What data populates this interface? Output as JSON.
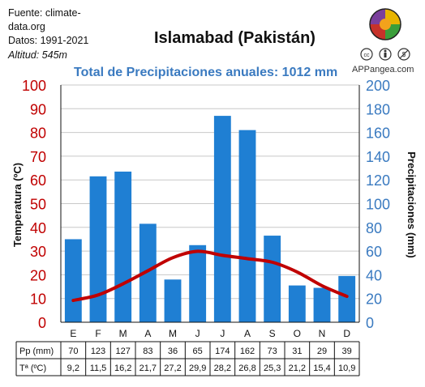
{
  "source": {
    "line1": "Fuente: climate-",
    "line2": "data.org",
    "dates": "Datos: 1991-2021",
    "altitude": "Altitud: 545m"
  },
  "title": "Islamabad (Pakistán)",
  "subtitle": "Total de Precipitaciones anuales: 1012 mm",
  "brand": "APPangea.com",
  "license_icons": [
    "cc-icon",
    "by-icon",
    "nc-icon"
  ],
  "colors": {
    "bar": "#1f7fd3",
    "line": "#c00000",
    "left_axis": "#c00000",
    "right_axis": "#3a7ac0",
    "subtitle": "#3a7ac0"
  },
  "table": {
    "pp_label": "Pp (mm)",
    "t_label": "Tª (ºC)",
    "pp": [
      "70",
      "123",
      "127",
      "83",
      "36",
      "65",
      "174",
      "162",
      "73",
      "31",
      "29",
      "39"
    ],
    "t": [
      "9,2",
      "11,5",
      "16,2",
      "21,7",
      "27,2",
      "29,9",
      "28,2",
      "26,8",
      "25,3",
      "21,2",
      "15,4",
      "10,9"
    ]
  },
  "chart_data": {
    "type": "bar",
    "categories": [
      "E",
      "F",
      "M",
      "A",
      "M",
      "J",
      "J",
      "A",
      "S",
      "O",
      "N",
      "D"
    ],
    "series": [
      {
        "values": [
          70,
          123,
          127,
          83,
          36,
          65,
          174,
          162,
          73,
          31,
          29,
          39
        ],
        "axis": "right",
        "kind": "bar"
      },
      {
        "values": [
          9.2,
          11.5,
          16.2,
          21.7,
          27.2,
          29.9,
          28.2,
          26.8,
          25.3,
          21.2,
          15.4,
          10.9
        ],
        "axis": "left",
        "kind": "line"
      }
    ],
    "ylabel_left": "Temperatura (ºC)",
    "ylabel_right": "Precipitaciones (mm)",
    "ylim_left": [
      0,
      100
    ],
    "ylim_right": [
      0,
      200
    ],
    "yticks_left": [
      0,
      10,
      20,
      30,
      40,
      50,
      60,
      70,
      80,
      90,
      100
    ],
    "yticks_right": [
      0,
      20,
      40,
      60,
      80,
      100,
      120,
      140,
      160,
      180,
      200
    ],
    "grid": true
  }
}
